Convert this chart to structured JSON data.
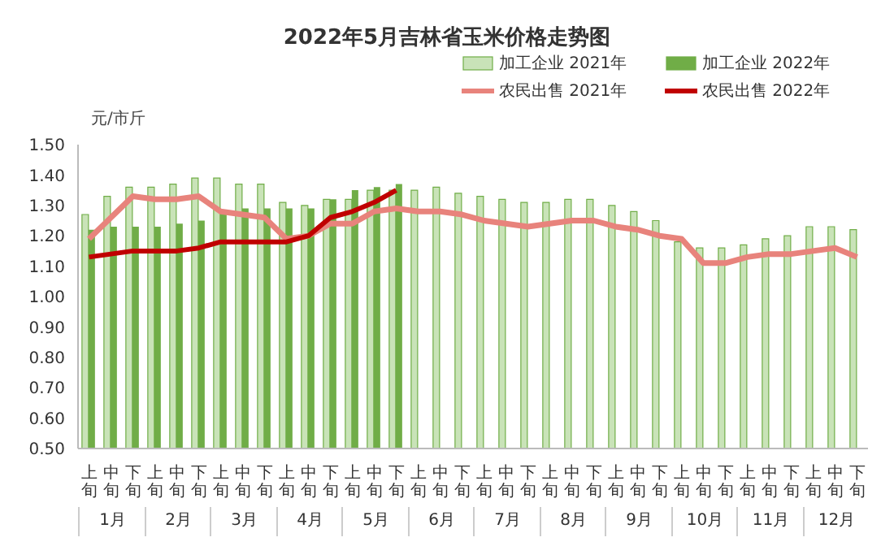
{
  "chart_data": {
    "type": "bar",
    "title": "2022年5月吉林省玉米价格走势图",
    "ylabel": "元/市斤",
    "categories": [
      "上旬",
      "中旬",
      "下旬",
      "上旬",
      "中旬",
      "下旬",
      "上旬",
      "中旬",
      "下旬",
      "上旬",
      "中旬",
      "下旬",
      "上旬",
      "中旬",
      "下旬",
      "上旬",
      "中旬",
      "下旬",
      "上旬",
      "中旬",
      "下旬",
      "上旬",
      "中旬",
      "下旬",
      "上旬",
      "中旬",
      "下旬",
      "上旬",
      "中旬",
      "下旬",
      "上旬",
      "中旬",
      "下旬",
      "上旬",
      "中旬",
      "下旬"
    ],
    "annotations": [
      "1月",
      "2月",
      "3月",
      "4月",
      "5月",
      "6月",
      "7月",
      "8月",
      "9月",
      "10月",
      "11月",
      "12月"
    ],
    "series": [
      {
        "name": "加工企业 2021年",
        "color": "#c9e3b8",
        "values": [
          1.27,
          1.33,
          1.36,
          1.36,
          1.37,
          1.39,
          1.39,
          1.37,
          1.37,
          1.31,
          1.3,
          1.32,
          1.32,
          1.35,
          1.35,
          1.35,
          1.36,
          1.34,
          1.33,
          1.32,
          1.31,
          1.31,
          1.32,
          1.32,
          1.3,
          1.28,
          1.25,
          1.18,
          1.16,
          1.16,
          1.17,
          1.19,
          1.2,
          1.23,
          1.23,
          1.22
        ]
      },
      {
        "name": "加工企业 2022年",
        "color": "#70ad47",
        "values": [
          1.22,
          1.23,
          1.23,
          1.23,
          1.24,
          1.25,
          1.28,
          1.29,
          1.29,
          1.29,
          1.29,
          1.32,
          1.35,
          1.36,
          1.37,
          null,
          null,
          null,
          null,
          null,
          null,
          null,
          null,
          null,
          null,
          null,
          null,
          null,
          null,
          null,
          null,
          null,
          null,
          null,
          null,
          null
        ]
      },
      {
        "name": "农民出售 2021年",
        "type": "line",
        "color": "#e8837c",
        "values": [
          1.19,
          1.26,
          1.33,
          1.32,
          1.32,
          1.33,
          1.28,
          1.27,
          1.26,
          1.19,
          1.2,
          1.24,
          1.24,
          1.28,
          1.29,
          1.28,
          1.28,
          1.27,
          1.25,
          1.24,
          1.23,
          1.24,
          1.25,
          1.25,
          1.23,
          1.22,
          1.2,
          1.19,
          1.11,
          1.11,
          1.13,
          1.14,
          1.14,
          1.15,
          1.16,
          1.13
        ]
      },
      {
        "name": "农民出售 2022年",
        "type": "line",
        "color": "#c00000",
        "values": [
          1.13,
          1.14,
          1.15,
          1.15,
          1.15,
          1.16,
          1.18,
          1.18,
          1.18,
          1.18,
          1.2,
          1.26,
          1.28,
          1.31,
          1.35,
          null,
          null,
          null,
          null,
          null,
          null,
          null,
          null,
          null,
          null,
          null,
          null,
          null,
          null,
          null,
          null,
          null,
          null,
          null,
          null,
          null
        ]
      }
    ],
    "ylim": [
      0.5,
      1.5
    ],
    "yticks": [
      {
        "value": 0.5,
        "label": "0.50"
      },
      {
        "value": 0.6,
        "label": "0.60"
      },
      {
        "value": 0.7,
        "label": "0.70"
      },
      {
        "value": 0.8,
        "label": "0.80"
      },
      {
        "value": 0.9,
        "label": "0.90"
      },
      {
        "value": 1.0,
        "label": "1.00"
      },
      {
        "value": 1.1,
        "label": "1.10"
      },
      {
        "value": 1.2,
        "label": "1.20"
      },
      {
        "value": 1.3,
        "label": "1.30"
      },
      {
        "value": 1.4,
        "label": "1.40"
      },
      {
        "value": 1.5,
        "label": "1.50"
      }
    ],
    "grid": false,
    "legend": "top right",
    "marker": "none",
    "line_style": "solid"
  }
}
